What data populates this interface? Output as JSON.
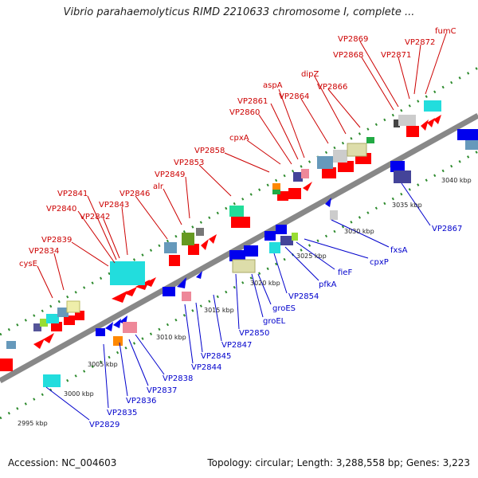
{
  "title": "Vibrio parahaemolyticus RIMD 2210633 chromosome I, complete ...",
  "footer": {
    "accession": "Accession: NC_004603",
    "summary": "Topology: circular; Length: 3,288,558 bp; Genes: 3,223"
  },
  "colors": {
    "forward_label": "#cc0000",
    "reverse_label": "#0000cc",
    "forward_gene": "#ff0000",
    "reverse_gene": "#0000ee",
    "backbone": "#888888",
    "tick": "#2e8b2e"
  },
  "kbp_labels": [
    "2995 kbp",
    "3000 kbp",
    "3005 kbp",
    "3010 kbp",
    "3015 kbp",
    "3020 kbp",
    "3025 kbp",
    "3030 kbp",
    "3035 kbp",
    "3040 kbp"
  ],
  "forward_labels": [
    "cysE",
    "VP2834",
    "VP2839",
    "VP2840",
    "VP2841",
    "VP2842",
    "VP2843",
    "VP2846",
    "alr",
    "VP2849",
    "VP2853",
    "VP2858",
    "cpxA",
    "VP2860",
    "VP2861",
    "aspA",
    "VP2864",
    "dipZ",
    "VP2866",
    "VP2868",
    "VP2869",
    "VP2871",
    "VP2872",
    "fumC"
  ],
  "reverse_labels": [
    "VP2829",
    "VP2835",
    "VP2836",
    "VP2837",
    "VP2838",
    "VP2844",
    "VP2845",
    "VP2847",
    "VP2850",
    "groEL",
    "groES",
    "VP2854",
    "pfkA",
    "fieF",
    "cpxP",
    "fxsA",
    "VP2867"
  ]
}
